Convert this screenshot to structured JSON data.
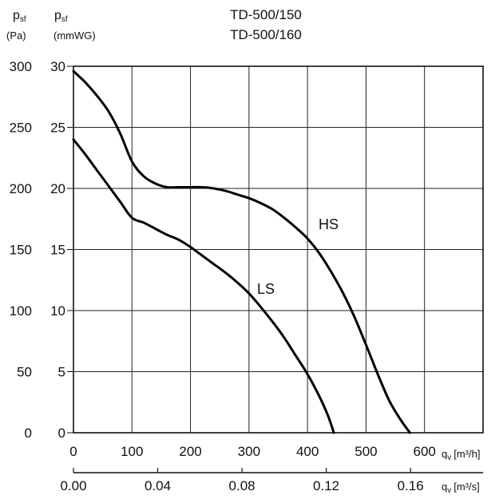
{
  "chart_data": {
    "type": "line",
    "title_lines": [
      "TD-500/150",
      "TD-500/160"
    ],
    "y_left": {
      "symbol": "p",
      "subscript": "sf",
      "unit": "(Pa)",
      "ticks": [
        "300",
        "250",
        "200",
        "150",
        "100",
        "50",
        "0"
      ],
      "ylim": [
        0,
        300
      ]
    },
    "y_right": {
      "symbol": "p",
      "subscript": "sf",
      "unit": "(mmWG)",
      "ticks": [
        "30",
        "25",
        "20",
        "15",
        "10",
        "5",
        "0"
      ],
      "ylim": [
        0,
        30
      ]
    },
    "x_top": {
      "symbol": "q",
      "subscript": "v",
      "unit": "[m³/h]",
      "ticks": [
        "0",
        "100",
        "200",
        "300",
        "400",
        "500",
        "600"
      ],
      "xlim": [
        0,
        700
      ]
    },
    "x_bottom": {
      "symbol": "q",
      "subscript": "v",
      "unit": "[m³/s]",
      "ticks": [
        "0.00",
        "0.04",
        "0.08",
        "0.12",
        "0.16"
      ]
    },
    "grid": true,
    "series": [
      {
        "name": "HS",
        "x": [
          0,
          20,
          40,
          60,
          80,
          100,
          120,
          140,
          160,
          180,
          200,
          220,
          240,
          260,
          280,
          300,
          320,
          340,
          360,
          380,
          400,
          420,
          440,
          460,
          480,
          500,
          520,
          540,
          560,
          575
        ],
        "y": [
          296,
          287,
          276,
          263,
          245,
          222,
          210,
          204,
          201,
          201,
          201,
          201,
          200,
          198,
          195,
          192,
          188,
          183,
          176,
          168,
          159,
          147,
          132,
          115,
          95,
          72,
          48,
          26,
          10,
          0
        ]
      },
      {
        "name": "LS",
        "x": [
          0,
          20,
          40,
          60,
          80,
          100,
          120,
          140,
          160,
          180,
          200,
          220,
          240,
          260,
          280,
          300,
          320,
          340,
          360,
          380,
          400,
          420,
          435,
          445
        ],
        "y": [
          240,
          228,
          215,
          202,
          189,
          176,
          172,
          167,
          162,
          158,
          152,
          145,
          138,
          131,
          123,
          114,
          103,
          91,
          78,
          63,
          48,
          30,
          14,
          0
        ]
      }
    ]
  }
}
